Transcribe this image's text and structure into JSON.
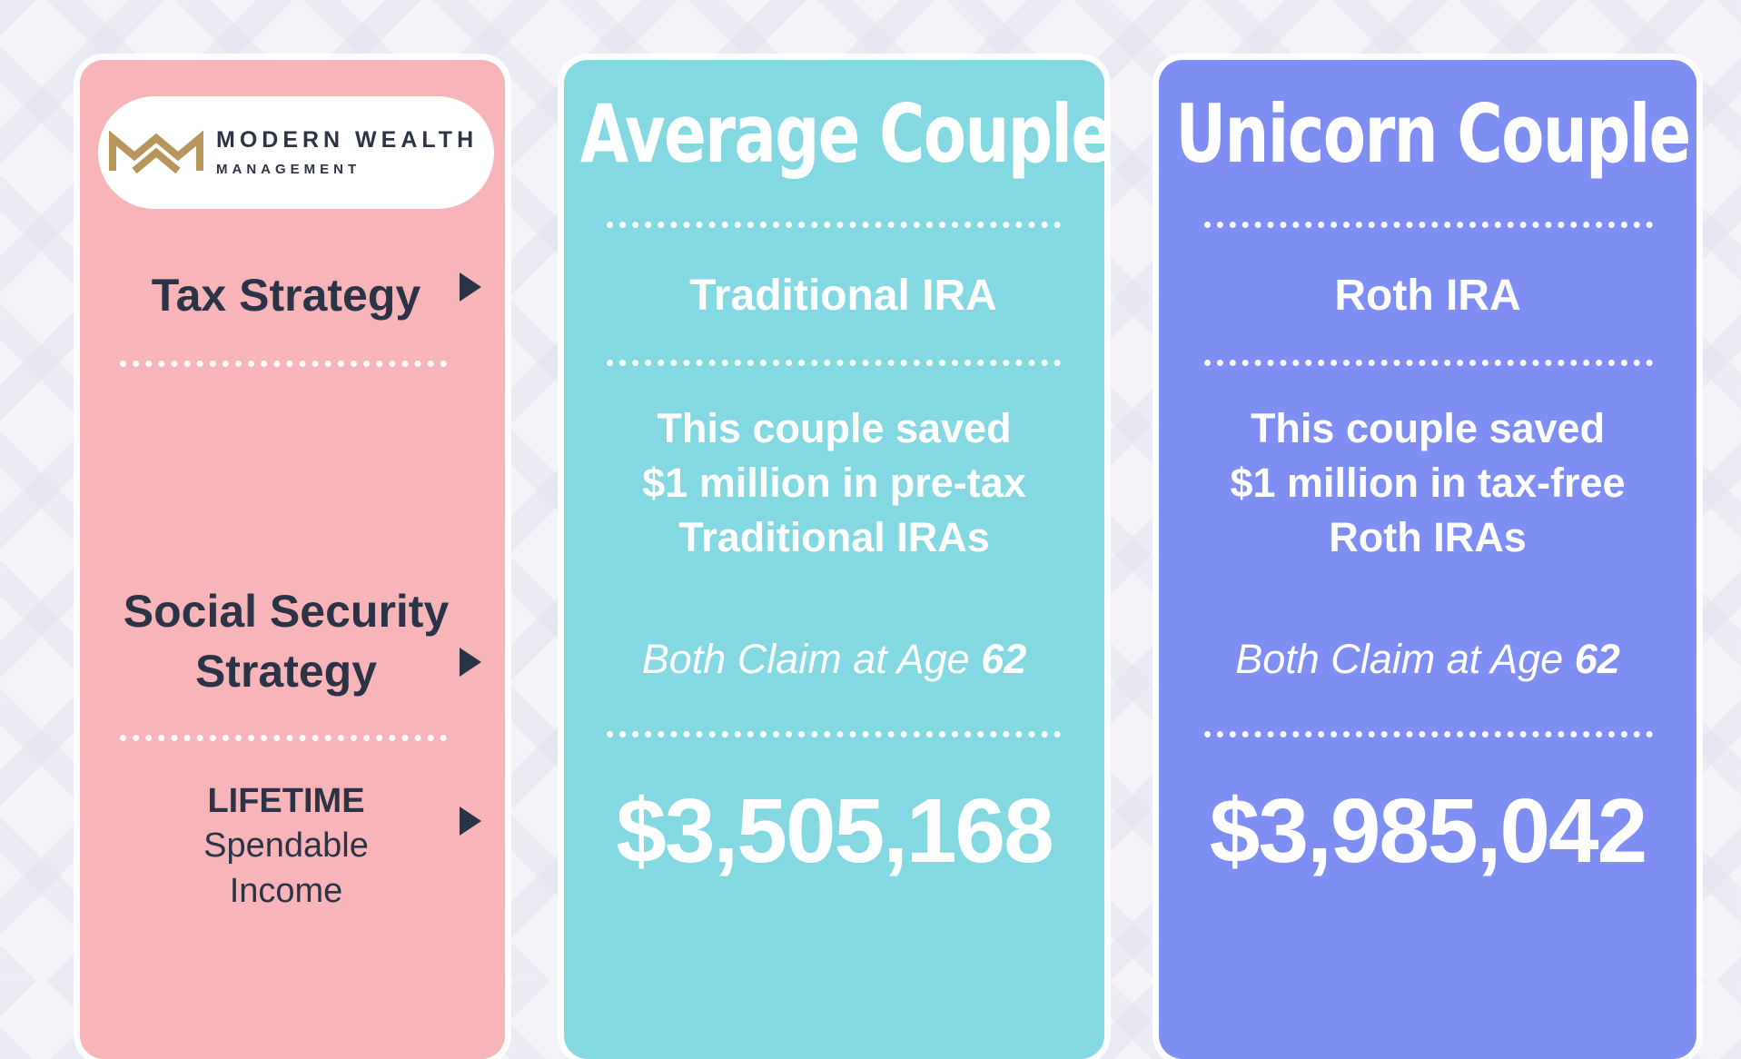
{
  "logo": {
    "name": "MODERN WEALTH",
    "subtitle": "MANAGEMENT",
    "mark_color": "#b8955a"
  },
  "rows": {
    "tax_strategy_label": "Tax Strategy",
    "ss_strategy_label_line1": "Social Security",
    "ss_strategy_label_line2": "Strategy",
    "lifetime_label_line1": "LIFETIME",
    "lifetime_label_line2": "Spendable",
    "lifetime_label_line3": "Income"
  },
  "columns": [
    {
      "title": "Average Couple",
      "tax_strategy": "Traditional IRA",
      "description_line1": "This couple saved",
      "description_line2": "$1 million in pre-tax",
      "description_line3": "Traditional IRAs",
      "claim_prefix": "Both Claim at Age",
      "claim_age": "62",
      "lifetime_income": "$3,505,168",
      "color": "#83d8e2"
    },
    {
      "title": "Unicorn Couple",
      "tax_strategy": "Roth IRA",
      "description_line1": "This couple saved",
      "description_line2": "$1 million in tax-free",
      "description_line3": "Roth IRAs",
      "claim_prefix": "Both Claim at Age",
      "claim_age": "62",
      "lifetime_income": "$3,985,042",
      "color": "#7e8ef2"
    }
  ],
  "colors": {
    "left_column": "#f7b5b9",
    "label_text": "#2b3446"
  }
}
